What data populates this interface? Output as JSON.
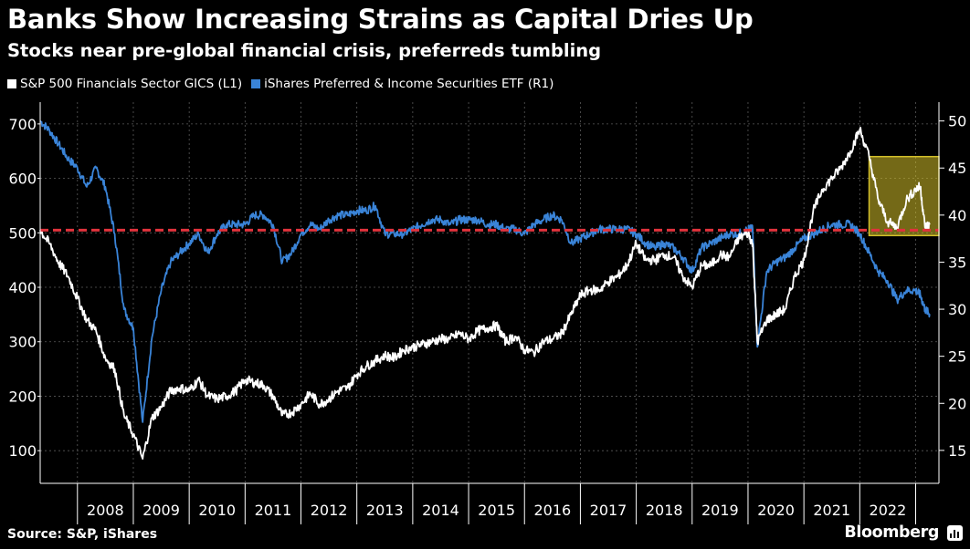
{
  "header": {
    "title": "Banks Show Increasing Strains as Capital Dries Up",
    "subtitle": "Stocks near pre-global financial crisis, preferreds tumbling"
  },
  "footer": {
    "source": "Source: S&P, iShares",
    "brand": "Bloomberg",
    "brand_icon": "bloomberg-chart-icon"
  },
  "colors": {
    "background": "#000000",
    "financials": "#ffffff",
    "preferred": "#3a84d8",
    "reference_line": "#e0323c",
    "highlight_fill": "#d4c02a",
    "grid": "#5a5a5a"
  },
  "chart_data": {
    "type": "line",
    "x_axis": {
      "ticks": [
        "2008",
        "2009",
        "2010",
        "2011",
        "2012",
        "2013",
        "2014",
        "2015",
        "2016",
        "2017",
        "2018",
        "2019",
        "2020",
        "2021",
        "2022"
      ],
      "range": [
        "2007-05-01",
        "2023-06-01"
      ]
    },
    "y_left": {
      "ticks": [
        100,
        200,
        300,
        400,
        500,
        600,
        700
      ],
      "range": [
        40,
        740
      ]
    },
    "y_right": {
      "ticks": [
        15,
        20,
        25,
        30,
        35,
        40,
        45,
        50
      ],
      "range": [
        11.5,
        52
      ]
    },
    "grid": true,
    "legend_position": "top-left",
    "series": [
      {
        "name": "S&P 500 Financials Sector GICS (L1)",
        "axis": "left",
        "color": "#ffffff",
        "points": [
          [
            "2007-05",
            505
          ],
          [
            "2007-07",
            480
          ],
          [
            "2007-09",
            445
          ],
          [
            "2007-11",
            420
          ],
          [
            "2008-01",
            380
          ],
          [
            "2008-03",
            340
          ],
          [
            "2008-05",
            320
          ],
          [
            "2008-07",
            270
          ],
          [
            "2008-09",
            250
          ],
          [
            "2008-11",
            165
          ],
          [
            "2009-01",
            130
          ],
          [
            "2009-03",
            85
          ],
          [
            "2009-05",
            160
          ],
          [
            "2009-07",
            180
          ],
          [
            "2009-09",
            210
          ],
          [
            "2009-11",
            215
          ],
          [
            "2010-01",
            210
          ],
          [
            "2010-03",
            230
          ],
          [
            "2010-05",
            200
          ],
          [
            "2010-07",
            195
          ],
          [
            "2010-09",
            200
          ],
          [
            "2010-11",
            210
          ],
          [
            "2011-01",
            230
          ],
          [
            "2011-03",
            225
          ],
          [
            "2011-05",
            220
          ],
          [
            "2011-07",
            200
          ],
          [
            "2011-09",
            165
          ],
          [
            "2011-11",
            170
          ],
          [
            "2012-01",
            185
          ],
          [
            "2012-03",
            205
          ],
          [
            "2012-05",
            185
          ],
          [
            "2012-07",
            195
          ],
          [
            "2012-09",
            210
          ],
          [
            "2012-11",
            215
          ],
          [
            "2013-01",
            240
          ],
          [
            "2013-03",
            255
          ],
          [
            "2013-05",
            265
          ],
          [
            "2013-07",
            275
          ],
          [
            "2013-09",
            270
          ],
          [
            "2013-11",
            285
          ],
          [
            "2014-01",
            290
          ],
          [
            "2014-03",
            295
          ],
          [
            "2014-05",
            300
          ],
          [
            "2014-07",
            305
          ],
          [
            "2014-09",
            305
          ],
          [
            "2014-11",
            315
          ],
          [
            "2015-01",
            305
          ],
          [
            "2015-03",
            320
          ],
          [
            "2015-05",
            325
          ],
          [
            "2015-07",
            330
          ],
          [
            "2015-09",
            300
          ],
          [
            "2015-11",
            310
          ],
          [
            "2016-01",
            285
          ],
          [
            "2016-03",
            280
          ],
          [
            "2016-05",
            300
          ],
          [
            "2016-07",
            305
          ],
          [
            "2016-09",
            315
          ],
          [
            "2016-11",
            350
          ],
          [
            "2017-01",
            385
          ],
          [
            "2017-03",
            395
          ],
          [
            "2017-05",
            395
          ],
          [
            "2017-07",
            410
          ],
          [
            "2017-09",
            420
          ],
          [
            "2017-11",
            440
          ],
          [
            "2018-01",
            480
          ],
          [
            "2018-03",
            450
          ],
          [
            "2018-05",
            450
          ],
          [
            "2018-07",
            460
          ],
          [
            "2018-09",
            455
          ],
          [
            "2018-11",
            420
          ],
          [
            "2019-01",
            400
          ],
          [
            "2019-03",
            440
          ],
          [
            "2019-05",
            440
          ],
          [
            "2019-07",
            460
          ],
          [
            "2019-09",
            455
          ],
          [
            "2019-11",
            490
          ],
          [
            "2020-01",
            500
          ],
          [
            "2020-02",
            480
          ],
          [
            "2020-03",
            300
          ],
          [
            "2020-05",
            340
          ],
          [
            "2020-07",
            350
          ],
          [
            "2020-09",
            360
          ],
          [
            "2020-11",
            420
          ],
          [
            "2021-01",
            450
          ],
          [
            "2021-03",
            540
          ],
          [
            "2021-05",
            580
          ],
          [
            "2021-07",
            600
          ],
          [
            "2021-09",
            620
          ],
          [
            "2021-11",
            650
          ],
          [
            "2022-01",
            690
          ],
          [
            "2022-03",
            640
          ],
          [
            "2022-05",
            560
          ],
          [
            "2022-07",
            520
          ],
          [
            "2022-09",
            510
          ],
          [
            "2022-11",
            560
          ],
          [
            "2023-01",
            580
          ],
          [
            "2023-02",
            585
          ],
          [
            "2023-03",
            510
          ],
          [
            "2023-04",
            515
          ]
        ]
      },
      {
        "name": "iShares Preferred & Income Securities ETF (R1)",
        "axis": "right",
        "color": "#3a84d8",
        "points": [
          [
            "2007-05",
            50
          ],
          [
            "2007-07",
            49
          ],
          [
            "2007-09",
            47.5
          ],
          [
            "2007-11",
            46
          ],
          [
            "2008-01",
            45
          ],
          [
            "2008-03",
            43
          ],
          [
            "2008-05",
            45
          ],
          [
            "2008-07",
            43
          ],
          [
            "2008-09",
            38
          ],
          [
            "2008-11",
            30
          ],
          [
            "2009-01",
            28
          ],
          [
            "2009-03",
            18
          ],
          [
            "2009-05",
            27
          ],
          [
            "2009-07",
            32
          ],
          [
            "2009-09",
            35
          ],
          [
            "2009-11",
            36
          ],
          [
            "2010-01",
            37
          ],
          [
            "2010-03",
            38
          ],
          [
            "2010-05",
            36
          ],
          [
            "2010-07",
            38
          ],
          [
            "2010-09",
            39
          ],
          [
            "2010-11",
            39
          ],
          [
            "2011-01",
            39
          ],
          [
            "2011-03",
            40
          ],
          [
            "2011-05",
            40
          ],
          [
            "2011-07",
            39
          ],
          [
            "2011-09",
            35
          ],
          [
            "2011-11",
            36
          ],
          [
            "2012-01",
            38
          ],
          [
            "2012-03",
            39
          ],
          [
            "2012-05",
            38.5
          ],
          [
            "2012-07",
            39.5
          ],
          [
            "2012-09",
            40
          ],
          [
            "2012-11",
            40
          ],
          [
            "2013-01",
            40.5
          ],
          [
            "2013-03",
            40.5
          ],
          [
            "2013-05",
            41
          ],
          [
            "2013-07",
            38
          ],
          [
            "2013-09",
            38
          ],
          [
            "2013-11",
            38
          ],
          [
            "2014-01",
            38.5
          ],
          [
            "2014-03",
            39
          ],
          [
            "2014-05",
            39.5
          ],
          [
            "2014-07",
            39.5
          ],
          [
            "2014-09",
            39
          ],
          [
            "2014-11",
            39.5
          ],
          [
            "2015-01",
            39.5
          ],
          [
            "2015-03",
            39.5
          ],
          [
            "2015-05",
            39
          ],
          [
            "2015-07",
            39
          ],
          [
            "2015-09",
            38.5
          ],
          [
            "2015-11",
            38.5
          ],
          [
            "2016-01",
            38
          ],
          [
            "2016-03",
            39
          ],
          [
            "2016-05",
            39.5
          ],
          [
            "2016-07",
            40
          ],
          [
            "2016-09",
            39.5
          ],
          [
            "2016-11",
            37
          ],
          [
            "2017-01",
            37.5
          ],
          [
            "2017-03",
            38
          ],
          [
            "2017-05",
            38.5
          ],
          [
            "2017-07",
            38.5
          ],
          [
            "2017-09",
            38.5
          ],
          [
            "2017-11",
            38.5
          ],
          [
            "2018-01",
            38
          ],
          [
            "2018-03",
            37
          ],
          [
            "2018-05",
            36.5
          ],
          [
            "2018-07",
            37
          ],
          [
            "2018-09",
            36.5
          ],
          [
            "2018-11",
            35.5
          ],
          [
            "2019-01",
            34
          ],
          [
            "2019-03",
            36.5
          ],
          [
            "2019-05",
            37
          ],
          [
            "2019-07",
            37.5
          ],
          [
            "2019-09",
            38
          ],
          [
            "2019-11",
            38
          ],
          [
            "2020-01",
            38.5
          ],
          [
            "2020-02",
            38.5
          ],
          [
            "2020-03",
            26
          ],
          [
            "2020-05",
            34
          ],
          [
            "2020-07",
            35
          ],
          [
            "2020-09",
            35.5
          ],
          [
            "2020-11",
            36.5
          ],
          [
            "2021-01",
            37.5
          ],
          [
            "2021-03",
            38
          ],
          [
            "2021-05",
            38.5
          ],
          [
            "2021-07",
            39
          ],
          [
            "2021-09",
            39
          ],
          [
            "2021-11",
            39
          ],
          [
            "2022-01",
            38
          ],
          [
            "2022-03",
            36
          ],
          [
            "2022-05",
            34
          ],
          [
            "2022-07",
            33
          ],
          [
            "2022-09",
            31
          ],
          [
            "2022-11",
            32
          ],
          [
            "2023-01",
            32
          ],
          [
            "2023-02",
            31.5
          ],
          [
            "2023-03",
            30
          ],
          [
            "2023-04",
            29.5
          ]
        ]
      }
    ],
    "reference_line": {
      "axis": "left",
      "value": 505,
      "style": "dashed"
    },
    "highlight_box": {
      "x_start": "2022-03",
      "x_end": "2023-06",
      "y_left_start": 495,
      "y_left_end": 640
    }
  }
}
